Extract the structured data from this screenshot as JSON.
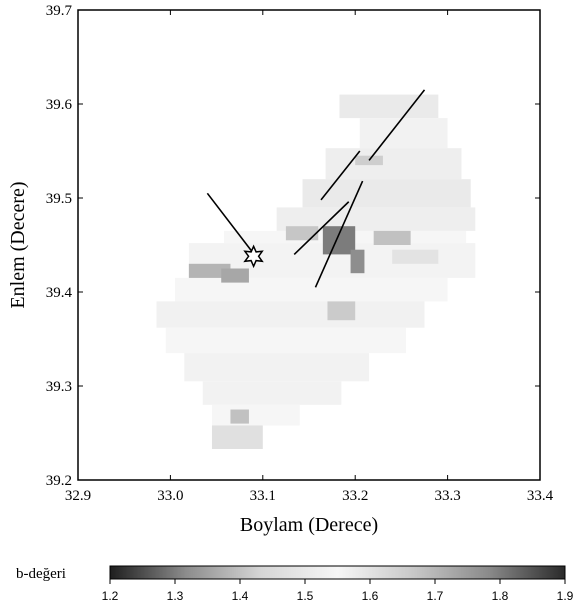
{
  "chart_data": {
    "type": "heatmap",
    "xlabel": "Boylam (Derece)",
    "ylabel": "Enlem (Decere)",
    "xlim": [
      32.9,
      33.4
    ],
    "ylim": [
      39.2,
      39.7
    ],
    "xticks": [
      "32.9",
      "33.0",
      "33.1",
      "33.2",
      "33.3",
      "33.4"
    ],
    "yticks": [
      "39.2",
      "39.3",
      "39.4",
      "39.5",
      "39.6",
      "39.7"
    ],
    "colorbar": {
      "label": "b-değeri",
      "range": [
        1.2,
        1.9
      ],
      "ticks": [
        "1.2",
        "1.3",
        "1.4",
        "1.5",
        "1.6",
        "1.7",
        "1.8",
        "1.9"
      ],
      "colors": [
        "#1e1e1e",
        "#8c8c8c",
        "#d6d6d6",
        "#f6f6f6",
        "#c8c8c8",
        "#8a8a8a",
        "#2a2a2a"
      ]
    },
    "faults": [
      [
        [
          33.04,
          39.505
        ],
        [
          33.093,
          39.437
        ]
      ],
      [
        [
          33.163,
          39.498
        ],
        [
          33.205,
          39.55
        ]
      ],
      [
        [
          33.215,
          39.54
        ],
        [
          33.275,
          39.615
        ]
      ],
      [
        [
          33.134,
          39.44
        ],
        [
          33.193,
          39.496
        ]
      ],
      [
        [
          33.157,
          39.405
        ],
        [
          33.208,
          39.518
        ]
      ]
    ],
    "epicenter": {
      "lon": 33.09,
      "lat": 39.438,
      "marker": "star"
    },
    "cells": [
      [
        33.183,
        39.585,
        33.29,
        39.61,
        1.58
      ],
      [
        33.205,
        39.553,
        33.3,
        39.585,
        1.56
      ],
      [
        33.168,
        39.52,
        33.315,
        39.553,
        1.57
      ],
      [
        33.143,
        39.49,
        33.325,
        39.52,
        1.58
      ],
      [
        33.115,
        39.465,
        33.33,
        39.49,
        1.57
      ],
      [
        33.058,
        39.452,
        33.32,
        39.465,
        1.55
      ],
      [
        33.02,
        39.415,
        33.33,
        39.452,
        1.54
      ],
      [
        33.005,
        39.39,
        33.3,
        39.415,
        1.55
      ],
      [
        32.985,
        39.362,
        33.275,
        39.39,
        1.53
      ],
      [
        32.995,
        39.335,
        33.255,
        39.362,
        1.55
      ],
      [
        33.015,
        39.305,
        33.215,
        39.335,
        1.56
      ],
      [
        33.035,
        39.28,
        33.185,
        39.305,
        1.56
      ],
      [
        33.045,
        39.258,
        33.14,
        39.28,
        1.55
      ],
      [
        33.045,
        39.233,
        33.1,
        39.258,
        1.47
      ],
      [
        33.02,
        39.415,
        33.065,
        39.43,
        1.38
      ],
      [
        33.055,
        39.41,
        33.085,
        39.425,
        1.36
      ],
      [
        33.065,
        39.26,
        33.085,
        39.275,
        1.4
      ],
      [
        33.165,
        39.44,
        33.2,
        39.47,
        1.3
      ],
      [
        33.195,
        39.42,
        33.21,
        39.445,
        1.32
      ],
      [
        33.2,
        39.535,
        33.23,
        39.545,
        1.42
      ],
      [
        33.24,
        39.43,
        33.29,
        39.445,
        1.48
      ],
      [
        33.125,
        39.455,
        33.16,
        39.47,
        1.67
      ],
      [
        33.22,
        39.45,
        33.26,
        39.465,
        1.68
      ],
      [
        33.17,
        39.37,
        33.2,
        39.39,
        1.66
      ]
    ]
  }
}
